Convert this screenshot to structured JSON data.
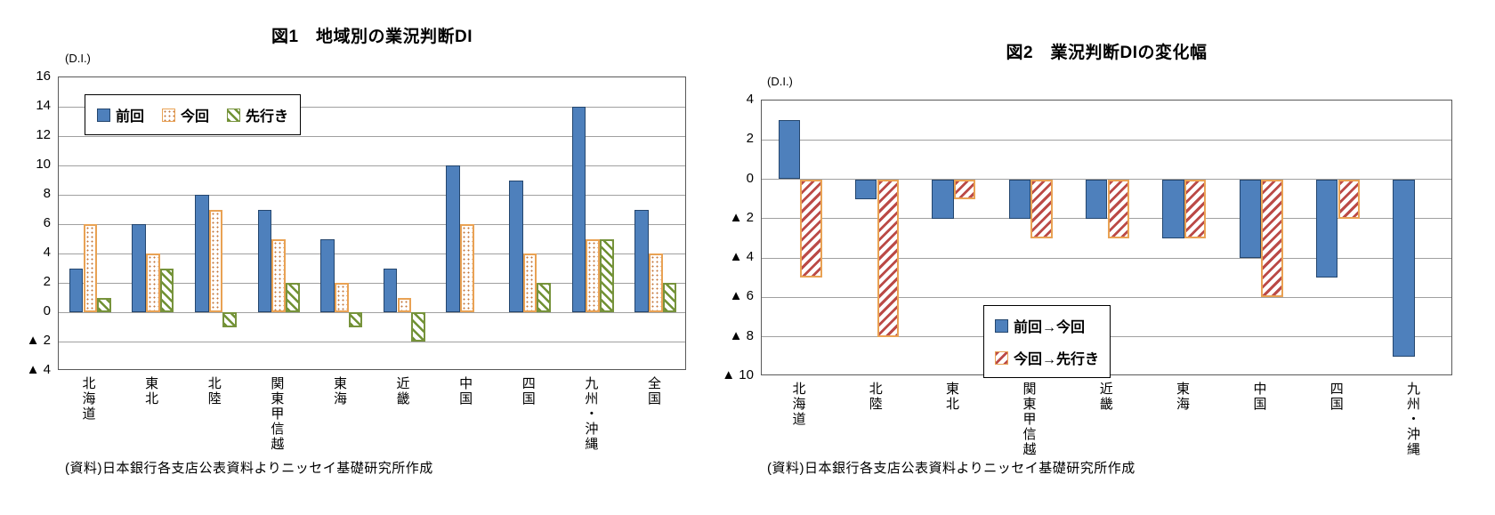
{
  "page": {
    "background": "#ffffff"
  },
  "colors": {
    "bar_blue": "#4e80bc",
    "bar_blue_border": "#24466e",
    "dotted_orange_border": "#e9a254",
    "dotted_orange_dot": "#c3763a",
    "hatch_green": "#6f9132",
    "hatch_green_border": "#77933c",
    "hatch_red": "#bb4a47",
    "hatch_red_border": "#e9a254",
    "gridline_gray": "#a0a0a0",
    "plot_border_gray": "#595959"
  },
  "chart_data": [
    {
      "type": "bar",
      "title": "図1　地域別の業況判断DI",
      "unit_label": "(D.I.)",
      "categories": [
        "北海道",
        "東北",
        "北陸",
        "関東甲信越",
        "東海",
        "近畿",
        "中国",
        "四国",
        "九州・沖縄",
        "全国"
      ],
      "series": [
        {
          "name": "前回",
          "style": "solid-blue",
          "values": [
            3,
            6,
            8,
            7,
            5,
            3,
            10,
            9,
            14,
            7
          ]
        },
        {
          "name": "今回",
          "style": "dotted-orange",
          "values": [
            6,
            4,
            7,
            5,
            2,
            1,
            6,
            4,
            5,
            4
          ]
        },
        {
          "name": "先行き",
          "style": "hatch-green",
          "values": [
            1,
            3,
            -1,
            2,
            -1,
            -2,
            0,
            2,
            5,
            2
          ]
        }
      ],
      "ylim": [
        -4,
        16
      ],
      "ytick_step": 2,
      "ytick_labels_top_to_bottom": [
        "16",
        "14",
        "12",
        "10",
        "8",
        "6",
        "4",
        "2",
        "0",
        "▲ 2",
        "▲ 4"
      ],
      "grid": true,
      "legend_position": "inside-top-left",
      "source_note": "(資料)日本銀行各支店公表資料よりニッセイ基礎研究所作成"
    },
    {
      "type": "bar",
      "title": "図2　業況判断DIの変化幅",
      "unit_label": "(D.I.)",
      "categories": [
        "北海道",
        "北陸",
        "東北",
        "関東甲信越",
        "近畿",
        "東海",
        "中国",
        "四国",
        "九州・沖縄"
      ],
      "series": [
        {
          "name": "前回→今回",
          "style": "solid-blue",
          "values": [
            3,
            -1,
            -2,
            -2,
            -2,
            -3,
            -4,
            -5,
            -9
          ]
        },
        {
          "name": "今回→先行き",
          "style": "hatch-red",
          "values": [
            -5,
            -8,
            -1,
            -3,
            -3,
            -3,
            -6,
            -2,
            0
          ]
        }
      ],
      "ylim": [
        -10,
        4
      ],
      "ytick_step": 2,
      "ytick_labels_top_to_bottom": [
        "4",
        "2",
        "0",
        "▲ 2",
        "▲ 4",
        "▲ 6",
        "▲ 8",
        "▲ 10"
      ],
      "grid": true,
      "legend_position": "inside-bottom-right",
      "source_note": "(資料)日本銀行各支店公表資料よりニッセイ基礎研究所作成"
    }
  ]
}
